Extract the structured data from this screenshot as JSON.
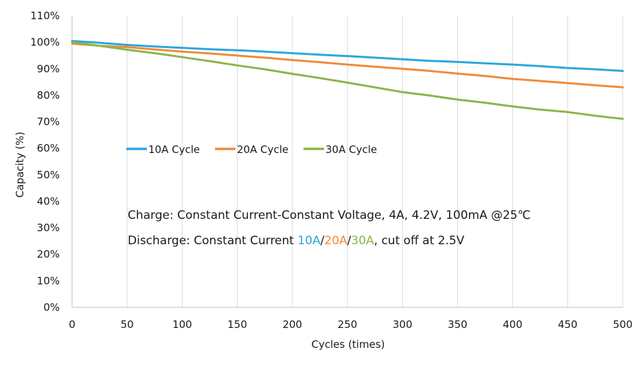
{
  "chart_data": {
    "type": "line",
    "xlabel": "Cycles (times)",
    "ylabel": "Capacity (%)",
    "xlim": [
      0,
      500
    ],
    "ylim": [
      0,
      110
    ],
    "x_ticks": [
      "0",
      "50",
      "100",
      "150",
      "200",
      "250",
      "300",
      "350",
      "400",
      "450",
      "500"
    ],
    "y_ticks": [
      "0%",
      "10%",
      "20%",
      "30%",
      "40%",
      "50%",
      "60%",
      "70%",
      "80%",
      "90%",
      "100%",
      "110%"
    ],
    "grid": "vertical",
    "legend_placement": "middle-left",
    "series": [
      {
        "name": "10A Cycle",
        "color": "#2aa7dc",
        "x": [
          0,
          25,
          50,
          75,
          100,
          125,
          150,
          175,
          200,
          225,
          250,
          275,
          300,
          325,
          350,
          375,
          400,
          425,
          450,
          475,
          500
        ],
        "y": [
          100.5,
          99.8,
          99.0,
          98.4,
          97.9,
          97.4,
          97.0,
          96.5,
          95.9,
          95.3,
          94.8,
          94.2,
          93.6,
          93.0,
          92.6,
          92.1,
          91.6,
          91.0,
          90.3,
          89.8,
          89.2
        ]
      },
      {
        "name": "20A Cycle",
        "color": "#f08a3c",
        "x": [
          0,
          25,
          50,
          75,
          100,
          125,
          150,
          175,
          200,
          225,
          250,
          275,
          300,
          325,
          350,
          375,
          400,
          425,
          450,
          475,
          500
        ],
        "y": [
          99.5,
          98.7,
          98.2,
          97.3,
          96.5,
          95.8,
          95.0,
          94.2,
          93.3,
          92.5,
          91.6,
          90.8,
          90.0,
          89.2,
          88.2,
          87.3,
          86.2,
          85.4,
          84.6,
          83.8,
          83.0
        ]
      },
      {
        "name": "30A Cycle",
        "color": "#8bb54a",
        "x": [
          0,
          25,
          50,
          75,
          100,
          125,
          150,
          175,
          200,
          225,
          250,
          275,
          300,
          325,
          350,
          375,
          400,
          425,
          450,
          475,
          500
        ],
        "y": [
          100.0,
          98.7,
          97.2,
          95.9,
          94.4,
          92.9,
          91.3,
          89.8,
          88.1,
          86.5,
          84.8,
          83.0,
          81.2,
          79.9,
          78.4,
          77.2,
          75.8,
          74.6,
          73.7,
          72.3,
          71.1
        ]
      }
    ]
  },
  "annotation": {
    "charge": "Charge: Constant Current-Constant Voltage, 4A, 4.2V, 100mA @25℃",
    "discharge_prefix": "Discharge: Constant Current ",
    "discharge_10a": "10A",
    "sep1": "/",
    "discharge_20a": "20A",
    "sep2": "/",
    "discharge_30a": "30A",
    "discharge_suffix": ", cut off at 2.5V"
  }
}
